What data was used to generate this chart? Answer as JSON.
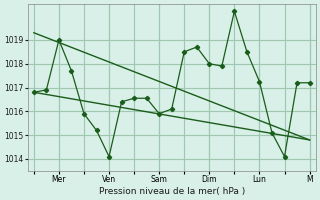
{
  "title": "",
  "xlabel": "Pression niveau de la mer( hPa )",
  "ylabel": "",
  "background_color": "#d8f0e8",
  "grid_color": "#a0c8b0",
  "line_color": "#1a5c1a",
  "line_color2": "#2d7a2d",
  "x_tick_labels": [
    "",
    "Mer",
    "",
    "Ven",
    "",
    "Sam",
    "",
    "Dim",
    "",
    "Lun",
    "",
    "M"
  ],
  "x_tick_positions": [
    0,
    2,
    4,
    6,
    8,
    10,
    12,
    14,
    16,
    18,
    20,
    22
  ],
  "ylim": [
    1013.5,
    1020.5
  ],
  "yticks": [
    1014,
    1015,
    1016,
    1017,
    1018,
    1019
  ],
  "series1": {
    "x": [
      0,
      1,
      2,
      3,
      4,
      5,
      6,
      7,
      8,
      9,
      10,
      11,
      12,
      13,
      14,
      15,
      16,
      17,
      18,
      19,
      20,
      21,
      22
    ],
    "y": [
      1016.8,
      1016.9,
      1019.0,
      1017.7,
      1015.9,
      1015.2,
      1014.1,
      1016.4,
      1016.55,
      1016.55,
      1015.9,
      1016.1,
      1018.5,
      1018.7,
      1018.0,
      1017.9,
      1020.2,
      1018.5,
      1017.25,
      1015.1,
      1014.1,
      1017.2,
      1017.2
    ]
  },
  "series2": {
    "x": [
      0,
      22
    ],
    "y": [
      1019.3,
      1014.8
    ]
  },
  "series3": {
    "x": [
      0,
      22
    ],
    "y": [
      1016.8,
      1014.8
    ]
  },
  "figsize": [
    3.2,
    2.0
  ],
  "dpi": 100
}
